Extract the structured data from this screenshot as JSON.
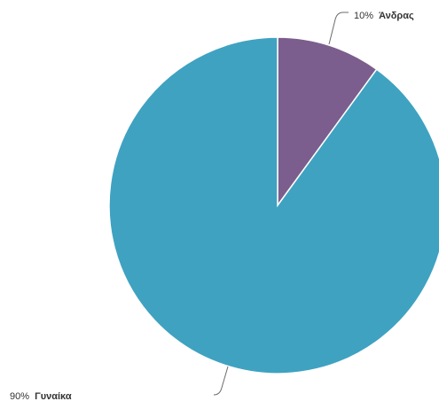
{
  "chart_data": {
    "type": "pie",
    "slices": [
      {
        "label": "Άνδρας",
        "value": 10,
        "percent_label": "10%",
        "color": "#7b5e8d"
      },
      {
        "label": "Γυναίκα",
        "value": 90,
        "percent_label": "90%",
        "color": "#3fa2c1"
      }
    ],
    "start_angle_deg": 0,
    "direction": "clockwise"
  }
}
